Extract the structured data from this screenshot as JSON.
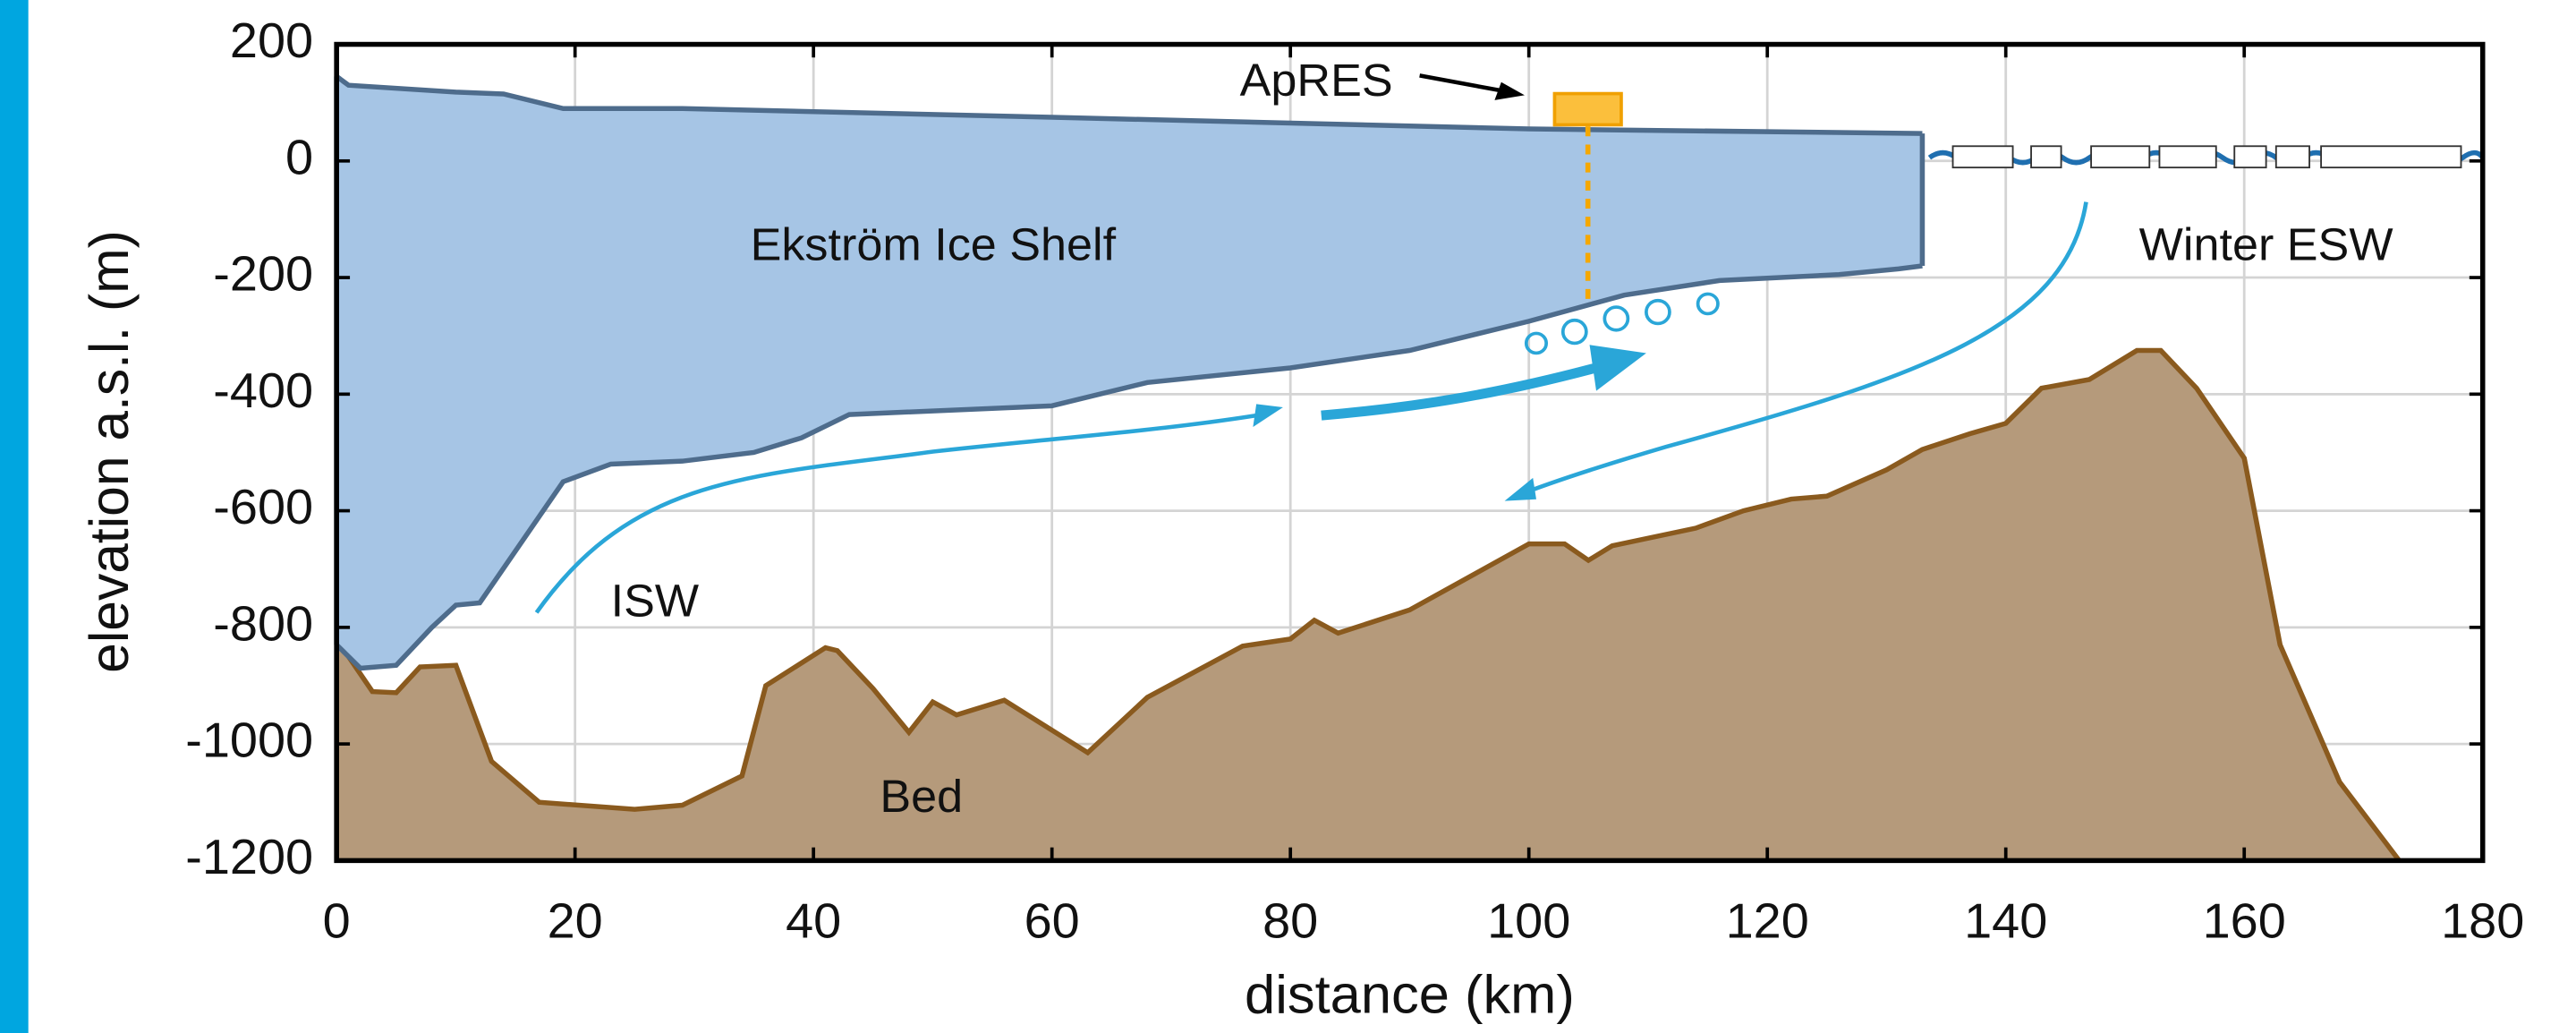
{
  "chart_data": {
    "type": "area",
    "xlabel": "distance (km)",
    "ylabel": "elevation a.s.l. (m)",
    "xlim": [
      0,
      180
    ],
    "ylim": [
      -1200,
      200
    ],
    "xticks": [
      0,
      20,
      40,
      60,
      80,
      100,
      120,
      140,
      160,
      180
    ],
    "yticks": [
      -1200,
      -1000,
      -800,
      -600,
      -400,
      -200,
      0,
      200
    ],
    "grid": true,
    "annotations": [
      "ApRES",
      "Ekström Ice Shelf",
      "Winter ESW",
      "ISW",
      "Bed"
    ],
    "ice_shelf": {
      "fill": "#a6c5e5",
      "color": "#4e6c8c",
      "surface": {
        "x": [
          0,
          1,
          10,
          14,
          19,
          29,
          60,
          100,
          133
        ],
        "values": [
          145,
          130,
          118,
          115,
          90,
          90,
          75,
          55,
          47
        ]
      },
      "base": {
        "x": [
          0,
          2,
          5,
          8,
          10,
          12,
          19,
          23,
          29,
          35,
          39,
          43,
          60,
          68,
          80,
          90,
          100,
          108,
          116,
          126,
          131,
          133
        ],
        "values": [
          -830,
          -870,
          -865,
          -800,
          -762,
          -758,
          -550,
          -520,
          -515,
          -500,
          -475,
          -435,
          -420,
          -380,
          -355,
          -325,
          -275,
          -230,
          -205,
          -195,
          -185,
          -180
        ]
      }
    },
    "bed": {
      "fill": "#b59a7b",
      "color": "#8a5a1e",
      "x": [
        0,
        3,
        5,
        7,
        10,
        13,
        17,
        25,
        29,
        34,
        36,
        41,
        42,
        45,
        48,
        50,
        52,
        56,
        63,
        68,
        76,
        80,
        82,
        84,
        90,
        100,
        103,
        105,
        107,
        114,
        118,
        122,
        125,
        130,
        133,
        137,
        140,
        143,
        147,
        151,
        153,
        156,
        160,
        163,
        168,
        173
      ],
      "values": [
        -820,
        -910,
        -912,
        -868,
        -865,
        -1030,
        -1100,
        -1112,
        -1105,
        -1055,
        -900,
        -835,
        -840,
        -905,
        -980,
        -928,
        -950,
        -925,
        -1015,
        -920,
        -832,
        -820,
        -788,
        -810,
        -770,
        -657,
        -657,
        -685,
        -660,
        -630,
        -600,
        -580,
        -575,
        -530,
        -495,
        -468,
        -450,
        -390,
        -375,
        -325,
        -325,
        -390,
        -510,
        -830,
        -1065,
        -1200
      ]
    }
  }
}
